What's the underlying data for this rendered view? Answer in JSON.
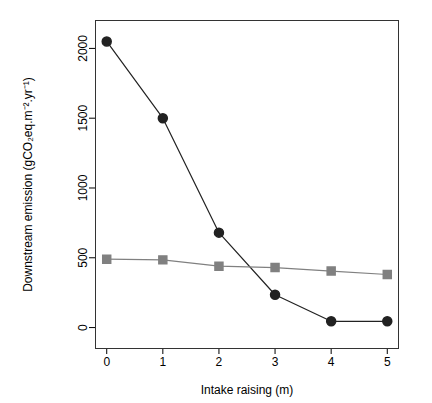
{
  "chart_data": {
    "type": "line",
    "x_label": "Intake raising (m)",
    "y_label": "Downstream emission (gCO₂eq.m⁻².yr⁻¹)",
    "x": [
      0,
      1,
      2,
      3,
      4,
      5
    ],
    "series": [
      {
        "color": "#222222",
        "marker": "circle",
        "line_style": "solid",
        "values": [
          2050,
          1500,
          680,
          235,
          45,
          45
        ]
      },
      {
        "color": "#808080",
        "marker": "square",
        "line_style": "solid",
        "values": [
          490,
          485,
          440,
          430,
          405,
          380
        ]
      }
    ],
    "xlim": [
      -0.2,
      5.2
    ],
    "xticks": [
      0,
      1,
      2,
      3,
      4,
      5
    ],
    "ylim": [
      -150,
      2200
    ],
    "yticks": [
      0,
      500,
      1000,
      1500,
      2000
    ],
    "grid": false
  }
}
